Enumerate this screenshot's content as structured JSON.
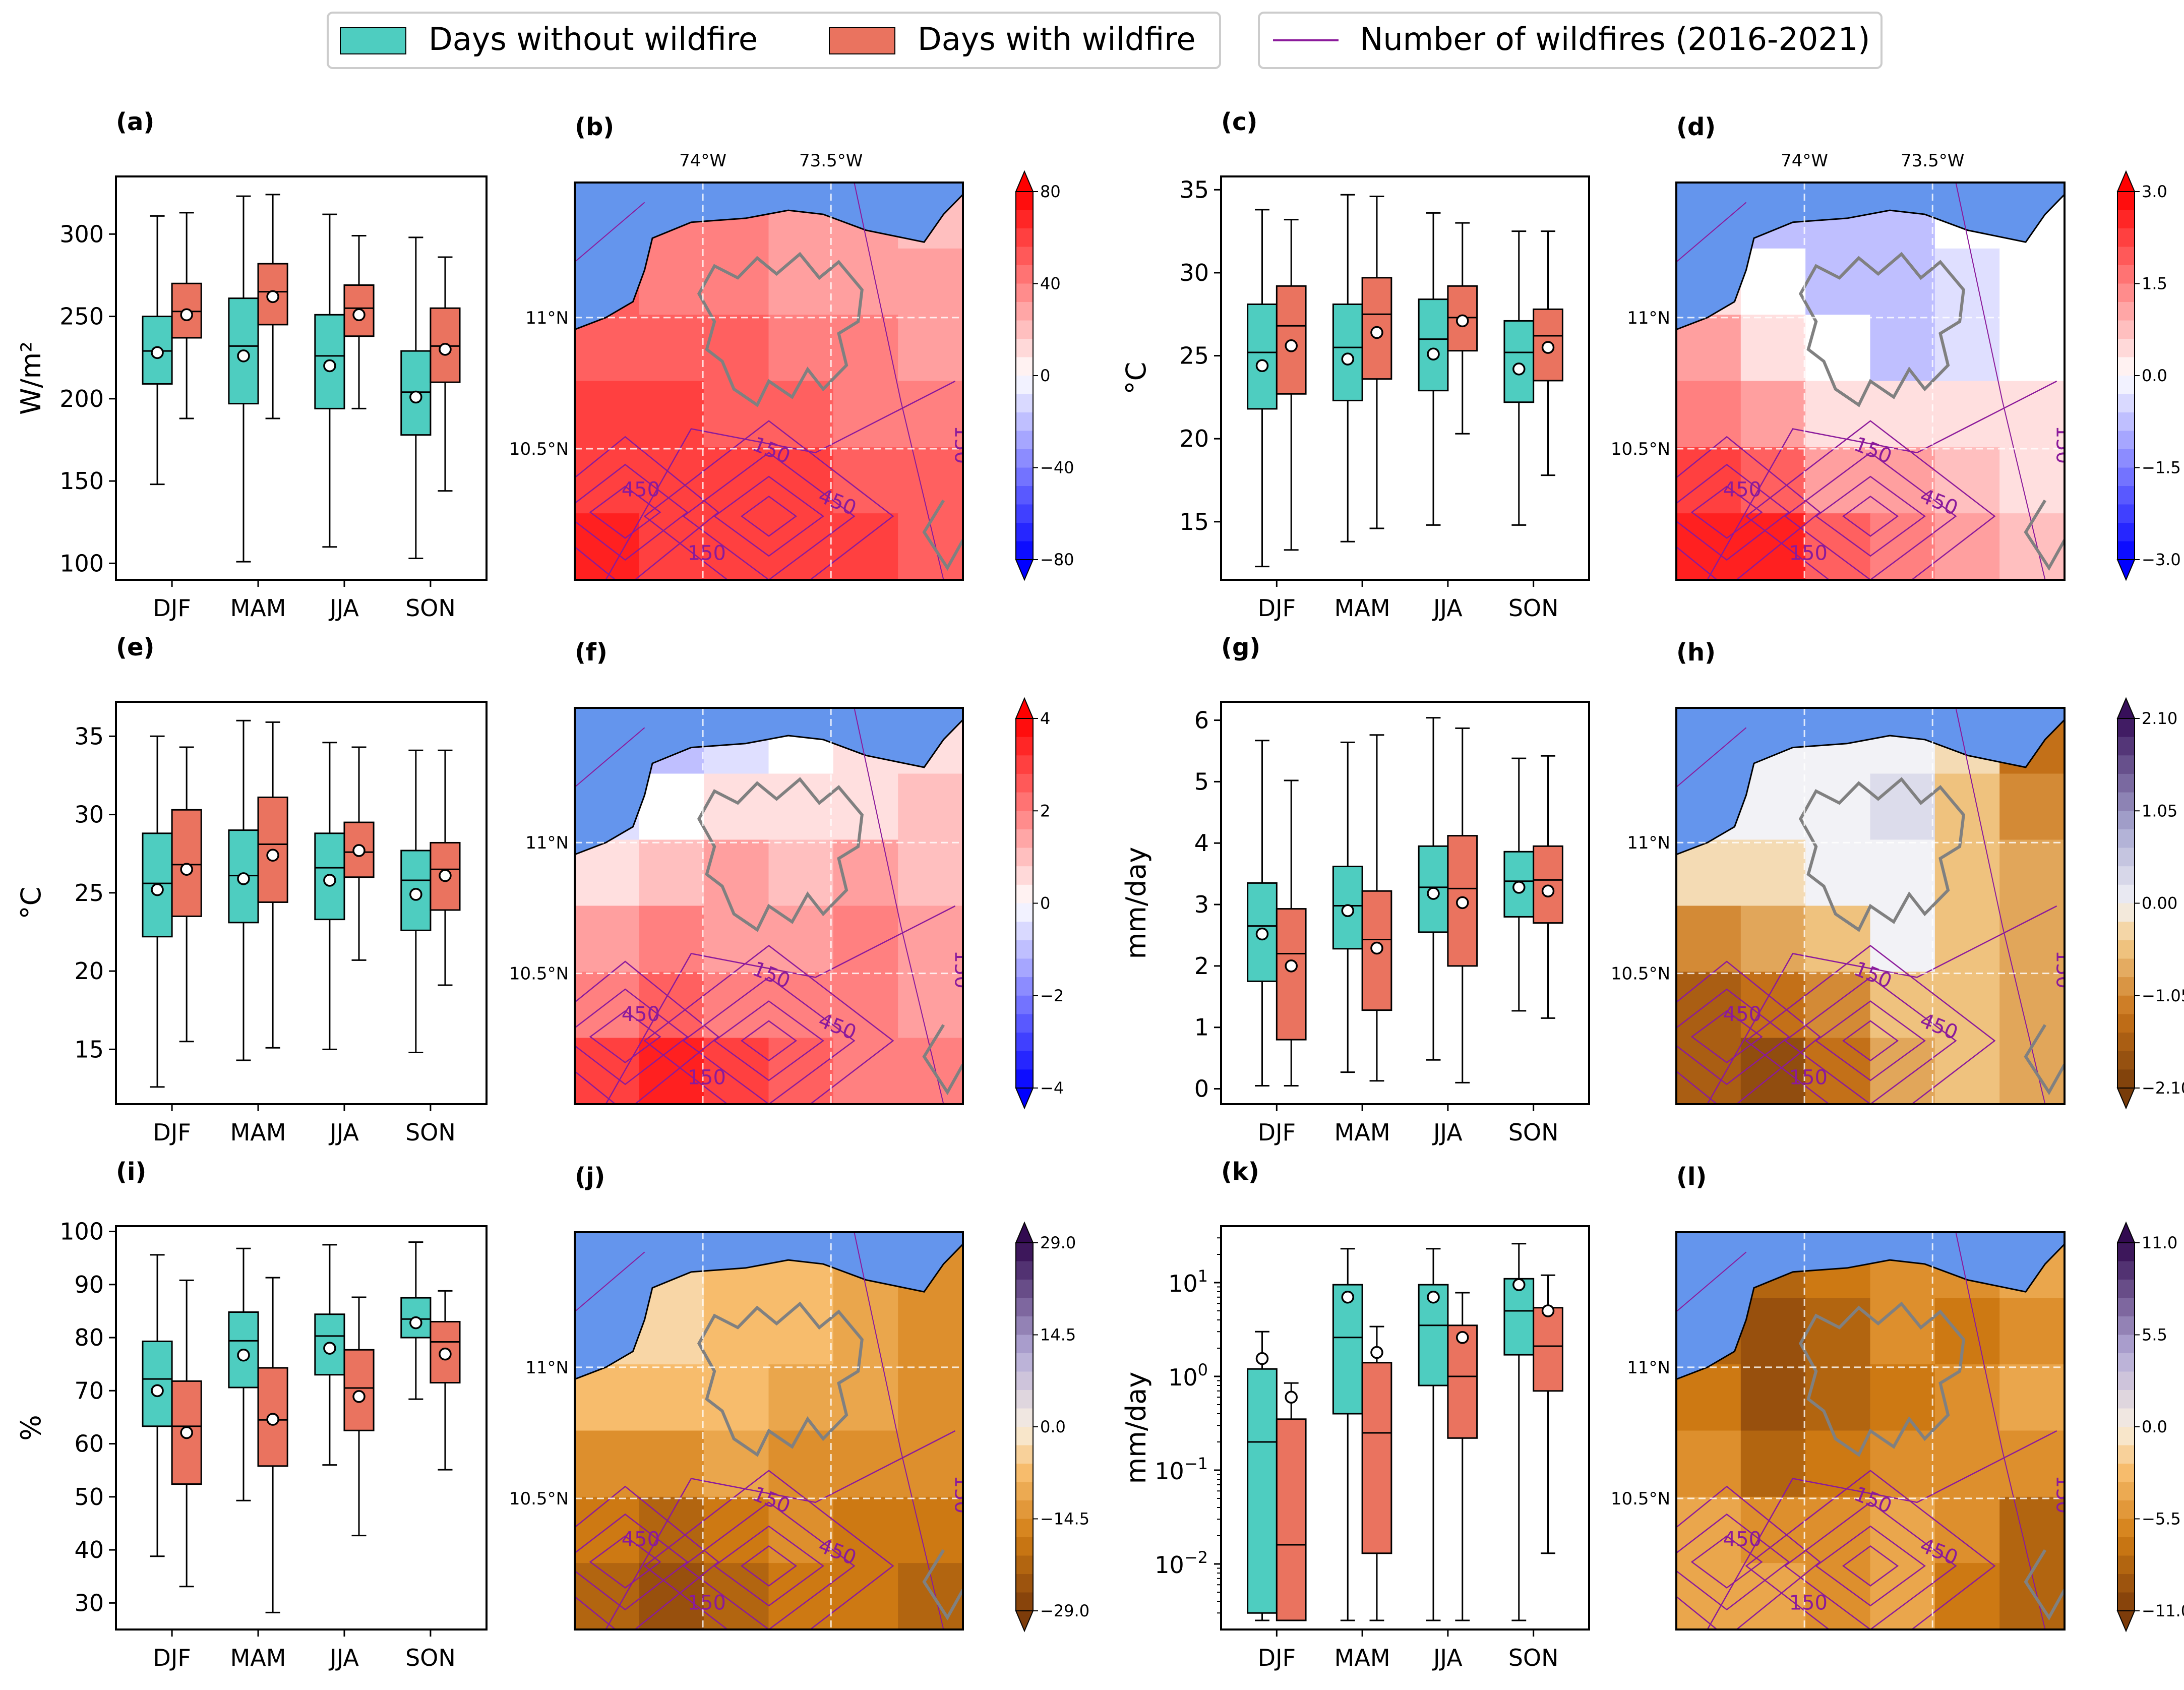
{
  "legend": {
    "items": [
      {
        "label": "Days without wildfire",
        "type": "patch",
        "color": "#4ecdc0"
      },
      {
        "label": "Days with wildfire",
        "type": "patch",
        "color": "#ea735f"
      }
    ],
    "line_item": {
      "label": "Number of wildfires (2016-2021)",
      "type": "line",
      "color": "#8b1a9b"
    }
  },
  "colors": {
    "without": "#4ecdc0",
    "with": "#ea735f",
    "sea": "#6495ed",
    "contour": "#8b1a9b",
    "outline": "#808080"
  },
  "map_common": {
    "lon_ticks": [
      "74°W",
      "73.5°W"
    ],
    "lat_ticks": [
      "11°N",
      "10.5°N"
    ],
    "contour_labels": [
      "150",
      "450",
      "450",
      "150",
      "150"
    ]
  },
  "chart_data": [
    {
      "panel": "(a)",
      "type": "box",
      "ylabel": "W/m²",
      "yscale": "linear",
      "categories": [
        "DJF",
        "MAM",
        "JJA",
        "SON"
      ],
      "ylim": [
        90,
        335
      ],
      "yticks": [
        100,
        150,
        200,
        250,
        300
      ],
      "series": [
        {
          "name": "Days without wildfire",
          "boxes": [
            {
              "whislo": 148,
              "q1": 209,
              "med": 229,
              "q3": 250,
              "whishi": 311,
              "mean": 228
            },
            {
              "whislo": 101,
              "q1": 197,
              "med": 232,
              "q3": 261,
              "whishi": 323,
              "mean": 226
            },
            {
              "whislo": 110,
              "q1": 194,
              "med": 226,
              "q3": 251,
              "whishi": 312,
              "mean": 220
            },
            {
              "whislo": 103,
              "q1": 178,
              "med": 204,
              "q3": 229,
              "whishi": 298,
              "mean": 201
            }
          ]
        },
        {
          "name": "Days with wildfire",
          "boxes": [
            {
              "whislo": 188,
              "q1": 237,
              "med": 253,
              "q3": 270,
              "whishi": 313,
              "mean": 251
            },
            {
              "whislo": 188,
              "q1": 245,
              "med": 265,
              "q3": 282,
              "whishi": 324,
              "mean": 262
            },
            {
              "whislo": 194,
              "q1": 238,
              "med": 255,
              "q3": 269,
              "whishi": 299,
              "mean": 251
            },
            {
              "whislo": 144,
              "q1": 210,
              "med": 232,
              "q3": 255,
              "whishi": 286,
              "mean": 230
            }
          ]
        }
      ]
    },
    {
      "panel": "(c)",
      "type": "box",
      "ylabel": "°C",
      "yscale": "linear",
      "categories": [
        "DJF",
        "MAM",
        "JJA",
        "SON"
      ],
      "ylim": [
        11.5,
        35.8
      ],
      "yticks": [
        15,
        20,
        25,
        30,
        35
      ],
      "series": [
        {
          "name": "Days without wildfire",
          "boxes": [
            {
              "whislo": 12.3,
              "q1": 21.8,
              "med": 25.2,
              "q3": 28.1,
              "whishi": 33.8,
              "mean": 24.4
            },
            {
              "whislo": 13.8,
              "q1": 22.3,
              "med": 25.5,
              "q3": 28.1,
              "whishi": 34.7,
              "mean": 24.8
            },
            {
              "whislo": 14.8,
              "q1": 22.9,
              "med": 26.0,
              "q3": 28.4,
              "whishi": 33.6,
              "mean": 25.1
            },
            {
              "whislo": 14.8,
              "q1": 22.2,
              "med": 25.2,
              "q3": 27.1,
              "whishi": 32.5,
              "mean": 24.2
            }
          ]
        },
        {
          "name": "Days with wildfire",
          "boxes": [
            {
              "whislo": 13.3,
              "q1": 22.7,
              "med": 26.8,
              "q3": 29.2,
              "whishi": 33.2,
              "mean": 25.6
            },
            {
              "whislo": 14.6,
              "q1": 23.6,
              "med": 27.5,
              "q3": 29.7,
              "whishi": 34.6,
              "mean": 26.4
            },
            {
              "whislo": 20.3,
              "q1": 25.3,
              "med": 27.3,
              "q3": 29.2,
              "whishi": 33.0,
              "mean": 27.1
            },
            {
              "whislo": 17.8,
              "q1": 23.5,
              "med": 26.2,
              "q3": 27.8,
              "whishi": 32.5,
              "mean": 25.5
            }
          ]
        }
      ]
    },
    {
      "panel": "(e)",
      "type": "box",
      "ylabel": "°C",
      "yscale": "linear",
      "categories": [
        "DJF",
        "MAM",
        "JJA",
        "SON"
      ],
      "ylim": [
        11.5,
        37.2
      ],
      "yticks": [
        15,
        20,
        25,
        30,
        35
      ],
      "series": [
        {
          "name": "Days without wildfire",
          "boxes": [
            {
              "whislo": 12.6,
              "q1": 22.2,
              "med": 25.6,
              "q3": 28.8,
              "whishi": 35.0,
              "mean": 25.2
            },
            {
              "whislo": 14.3,
              "q1": 23.1,
              "med": 26.1,
              "q3": 29.0,
              "whishi": 36.0,
              "mean": 25.9
            },
            {
              "whislo": 15.0,
              "q1": 23.3,
              "med": 26.6,
              "q3": 28.8,
              "whishi": 34.6,
              "mean": 25.8
            },
            {
              "whislo": 14.8,
              "q1": 22.6,
              "med": 25.8,
              "q3": 27.7,
              "whishi": 34.1,
              "mean": 24.9
            }
          ]
        },
        {
          "name": "Days with wildfire",
          "boxes": [
            {
              "whislo": 15.5,
              "q1": 23.5,
              "med": 26.8,
              "q3": 30.3,
              "whishi": 34.3,
              "mean": 26.5
            },
            {
              "whislo": 15.1,
              "q1": 24.4,
              "med": 28.1,
              "q3": 31.1,
              "whishi": 35.9,
              "mean": 27.4
            },
            {
              "whislo": 20.7,
              "q1": 26.0,
              "med": 27.6,
              "q3": 29.5,
              "whishi": 34.3,
              "mean": 27.7
            },
            {
              "whislo": 19.1,
              "q1": 23.9,
              "med": 26.5,
              "q3": 28.2,
              "whishi": 34.1,
              "mean": 26.1
            }
          ]
        }
      ]
    },
    {
      "panel": "(g)",
      "type": "box",
      "ylabel": "mm/day",
      "yscale": "linear",
      "categories": [
        "DJF",
        "MAM",
        "JJA",
        "SON"
      ],
      "ylim": [
        -0.25,
        6.3
      ],
      "yticks": [
        0,
        1,
        2,
        3,
        4,
        5,
        6
      ],
      "series": [
        {
          "name": "Days without wildfire",
          "boxes": [
            {
              "whislo": 0.05,
              "q1": 1.75,
              "med": 2.65,
              "q3": 3.35,
              "whishi": 5.67,
              "mean": 2.52
            },
            {
              "whislo": 0.27,
              "q1": 2.28,
              "med": 2.98,
              "q3": 3.62,
              "whishi": 5.64,
              "mean": 2.9
            },
            {
              "whislo": 0.47,
              "q1": 2.55,
              "med": 3.28,
              "q3": 3.95,
              "whishi": 6.04,
              "mean": 3.18
            },
            {
              "whislo": 1.27,
              "q1": 2.8,
              "med": 3.38,
              "q3": 3.86,
              "whishi": 5.38,
              "mean": 3.28
            }
          ]
        },
        {
          "name": "Days with wildfire",
          "boxes": [
            {
              "whislo": 0.05,
              "q1": 0.8,
              "med": 2.2,
              "q3": 2.93,
              "whishi": 5.02,
              "mean": 2.0
            },
            {
              "whislo": 0.13,
              "q1": 1.28,
              "med": 2.43,
              "q3": 3.22,
              "whishi": 5.76,
              "mean": 2.29
            },
            {
              "whislo": 0.1,
              "q1": 2.0,
              "med": 3.26,
              "q3": 4.12,
              "whishi": 5.87,
              "mean": 3.03
            },
            {
              "whislo": 1.15,
              "q1": 2.7,
              "med": 3.4,
              "q3": 3.95,
              "whishi": 5.42,
              "mean": 3.22
            }
          ]
        }
      ]
    },
    {
      "panel": "(i)",
      "type": "box",
      "ylabel": "%",
      "yscale": "linear",
      "categories": [
        "DJF",
        "MAM",
        "JJA",
        "SON"
      ],
      "ylim": [
        25,
        101
      ],
      "yticks": [
        30,
        40,
        50,
        60,
        70,
        80,
        90,
        100
      ],
      "series": [
        {
          "name": "Days without wildfire",
          "boxes": [
            {
              "whislo": 38.8,
              "q1": 63.3,
              "med": 72.2,
              "q3": 79.3,
              "whishi": 95.6,
              "mean": 70.0
            },
            {
              "whislo": 49.3,
              "q1": 70.6,
              "med": 79.4,
              "q3": 84.8,
              "whishi": 96.8,
              "mean": 76.7
            },
            {
              "whislo": 56.0,
              "q1": 73.0,
              "med": 80.3,
              "q3": 84.4,
              "whishi": 97.5,
              "mean": 78.0
            },
            {
              "whislo": 68.4,
              "q1": 80.0,
              "med": 83.5,
              "q3": 87.5,
              "whishi": 98.0,
              "mean": 82.8
            }
          ]
        },
        {
          "name": "Days with wildfire",
          "boxes": [
            {
              "whislo": 33.1,
              "q1": 52.4,
              "med": 63.3,
              "q3": 71.8,
              "whishi": 90.8,
              "mean": 62.1
            },
            {
              "whislo": 28.2,
              "q1": 55.8,
              "med": 64.5,
              "q3": 74.3,
              "whishi": 91.3,
              "mean": 64.6
            },
            {
              "whislo": 42.7,
              "q1": 62.5,
              "med": 70.5,
              "q3": 77.7,
              "whishi": 87.6,
              "mean": 68.9
            },
            {
              "whislo": 55.1,
              "q1": 71.5,
              "med": 79.2,
              "q3": 83.0,
              "whishi": 88.8,
              "mean": 76.9
            }
          ]
        }
      ]
    },
    {
      "panel": "(k)",
      "type": "box",
      "ylabel": "mm/day",
      "yscale": "log",
      "categories": [
        "DJF",
        "MAM",
        "JJA",
        "SON"
      ],
      "ylim": [
        0.002,
        40
      ],
      "yticks": [
        0.01,
        0.1,
        1,
        10
      ],
      "yticklabels": [
        [
          "10",
          "−2"
        ],
        [
          "10",
          "−1"
        ],
        [
          "10",
          "0"
        ],
        [
          "10",
          "1"
        ]
      ],
      "series": [
        {
          "name": "Days without wildfire",
          "boxes": [
            {
              "whislo": 0.0025,
              "q1": 0.003,
              "med": 0.2,
              "q3": 1.2,
              "whishi": 3.0,
              "mean": 1.55
            },
            {
              "whislo": 0.0025,
              "q1": 0.4,
              "med": 2.6,
              "q3": 9.5,
              "whishi": 23,
              "mean": 7.0
            },
            {
              "whislo": 0.0025,
              "q1": 0.8,
              "med": 3.5,
              "q3": 9.5,
              "whishi": 23,
              "mean": 7.0
            },
            {
              "whislo": 0.0025,
              "q1": 1.7,
              "med": 5.0,
              "q3": 11.0,
              "whishi": 26,
              "mean": 9.5
            }
          ]
        },
        {
          "name": "Days with wildfire",
          "boxes": [
            {
              "whislo": 0.0025,
              "q1": 0.0025,
              "med": 0.016,
              "q3": 0.35,
              "whishi": 0.85,
              "mean": 0.6
            },
            {
              "whislo": 0.0025,
              "q1": 0.013,
              "med": 0.25,
              "q3": 1.4,
              "whishi": 3.4,
              "mean": 1.8
            },
            {
              "whislo": 0.0025,
              "q1": 0.22,
              "med": 1.0,
              "q3": 3.5,
              "whishi": 7.8,
              "mean": 2.6
            },
            {
              "whislo": 0.013,
              "q1": 0.7,
              "med": 2.1,
              "q3": 5.4,
              "whishi": 12,
              "mean": 5.0
            }
          ]
        }
      ]
    },
    {
      "panel": "(b)",
      "type": "map",
      "cmap": "bwr",
      "ticks": [
        "80",
        "40",
        "0",
        "−40",
        "−80"
      ],
      "show_lon": true,
      "field": [
        [
          0.78,
          0.76,
          0.72,
          0.68,
          0.66,
          0.64
        ],
        [
          0.8,
          0.78,
          0.74,
          0.7,
          0.68,
          0.66
        ],
        [
          0.84,
          0.82,
          0.8,
          0.76,
          0.72,
          0.7
        ],
        [
          0.88,
          0.86,
          0.82,
          0.8,
          0.76,
          0.74
        ],
        [
          0.9,
          0.88,
          0.86,
          0.86,
          0.82,
          0.8
        ],
        [
          0.92,
          0.9,
          0.88,
          0.9,
          0.88,
          0.84
        ]
      ]
    },
    {
      "panel": "(d)",
      "type": "map",
      "cmap": "bwr",
      "ticks": [
        "3.0",
        "1.5",
        "0.0",
        "−1.5",
        "−3.0"
      ],
      "show_lon": true,
      "field": [
        [
          0.45,
          0.4,
          0.36,
          0.4,
          0.48,
          0.52
        ],
        [
          0.56,
          0.48,
          0.4,
          0.38,
          0.45,
          0.5
        ],
        [
          0.68,
          0.58,
          0.48,
          0.4,
          0.44,
          0.52
        ],
        [
          0.78,
          0.7,
          0.58,
          0.54,
          0.55,
          0.56
        ],
        [
          0.86,
          0.8,
          0.7,
          0.66,
          0.6,
          0.58
        ],
        [
          0.94,
          0.92,
          0.8,
          0.74,
          0.66,
          0.6
        ]
      ]
    },
    {
      "panel": "(f)",
      "type": "map",
      "cmap": "bwr",
      "ticks": [
        "4",
        "2",
        "0",
        "−2",
        "−4"
      ],
      "show_lon": false,
      "field": [
        [
          0.4,
          0.36,
          0.44,
          0.52,
          0.55,
          0.58
        ],
        [
          0.45,
          0.48,
          0.55,
          0.56,
          0.58,
          0.6
        ],
        [
          0.58,
          0.62,
          0.66,
          0.64,
          0.66,
          0.64
        ],
        [
          0.68,
          0.72,
          0.7,
          0.7,
          0.72,
          0.68
        ],
        [
          0.78,
          0.82,
          0.78,
          0.76,
          0.76,
          0.7
        ],
        [
          0.9,
          0.92,
          0.86,
          0.82,
          0.78,
          0.72
        ]
      ]
    },
    {
      "panel": "(h)",
      "type": "map",
      "cmap": "brbg",
      "ticks": [
        "2.10",
        "1.05",
        "0.00",
        "−1.05",
        "−2.10"
      ],
      "show_lon": false,
      "field": [
        [
          0.55,
          0.5,
          0.5,
          0.5,
          0.45,
          0.2
        ],
        [
          0.52,
          0.5,
          0.5,
          0.55,
          0.4,
          0.25
        ],
        [
          0.45,
          0.42,
          0.48,
          0.5,
          0.35,
          0.3
        ],
        [
          0.25,
          0.3,
          0.4,
          0.48,
          0.4,
          0.3
        ],
        [
          0.15,
          0.18,
          0.25,
          0.38,
          0.4,
          0.3
        ],
        [
          0.1,
          0.08,
          0.18,
          0.3,
          0.35,
          0.3
        ]
      ]
    },
    {
      "panel": "(j)",
      "type": "map",
      "cmap": "puor",
      "ticks": [
        "29.0",
        "14.5",
        "0.0",
        "−14.5",
        "−29.0"
      ],
      "show_lon": false,
      "field": [
        [
          0.45,
          0.45,
          0.4,
          0.35,
          0.3,
          0.28
        ],
        [
          0.44,
          0.44,
          0.4,
          0.35,
          0.32,
          0.28
        ],
        [
          0.35,
          0.38,
          0.36,
          0.32,
          0.3,
          0.25
        ],
        [
          0.25,
          0.28,
          0.3,
          0.28,
          0.25,
          0.22
        ],
        [
          0.16,
          0.15,
          0.2,
          0.22,
          0.2,
          0.18
        ],
        [
          0.1,
          0.06,
          0.12,
          0.16,
          0.16,
          0.14
        ]
      ]
    },
    {
      "panel": "(l)",
      "type": "map",
      "cmap": "puor",
      "ticks": [
        "11.0",
        "5.5",
        "0.0",
        "−5.5",
        "−11.0"
      ],
      "show_lon": false,
      "field": [
        [
          0.25,
          0.12,
          0.18,
          0.22,
          0.28,
          0.3
        ],
        [
          0.15,
          0.08,
          0.12,
          0.25,
          0.2,
          0.25
        ],
        [
          0.18,
          0.06,
          0.1,
          0.18,
          0.22,
          0.3
        ],
        [
          0.25,
          0.15,
          0.2,
          0.22,
          0.26,
          0.22
        ],
        [
          0.3,
          0.28,
          0.24,
          0.3,
          0.22,
          0.12
        ],
        [
          0.3,
          0.3,
          0.25,
          0.3,
          0.18,
          0.1
        ]
      ]
    }
  ]
}
